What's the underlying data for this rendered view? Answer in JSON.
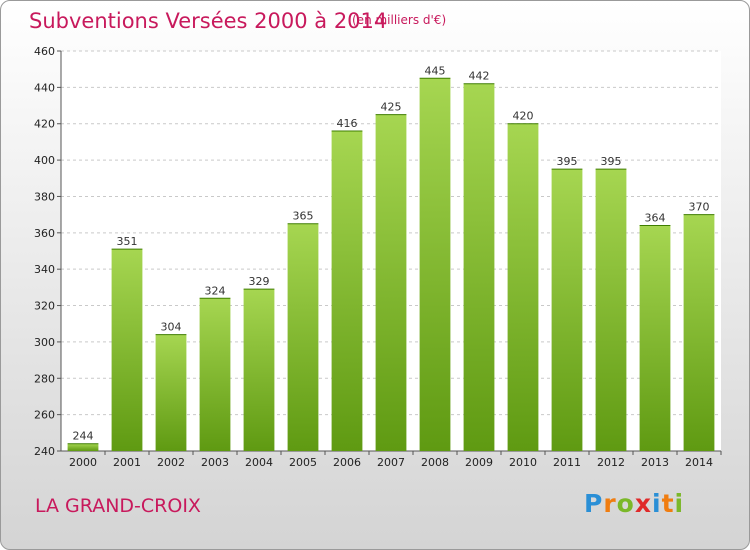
{
  "header": {
    "title": "Subventions Versées 2000 à 2014",
    "subtitle": "(en milliers d'€)"
  },
  "footer": {
    "commune": "LA GRAND-CROIX",
    "logo_letters": [
      "P",
      "r",
      "o",
      "x",
      "i",
      "t",
      "i"
    ]
  },
  "colors": {
    "accent": "#c8195c",
    "bar_light": "#9fd14b",
    "bar_dark": "#5f9a12"
  },
  "chart_data": {
    "type": "bar",
    "categories": [
      "2000",
      "2001",
      "2002",
      "2003",
      "2004",
      "2005",
      "2006",
      "2007",
      "2008",
      "2009",
      "2010",
      "2011",
      "2012",
      "2013",
      "2014"
    ],
    "values": [
      244,
      351,
      304,
      324,
      329,
      365,
      416,
      425,
      445,
      442,
      420,
      395,
      395,
      364,
      370
    ],
    "ylim": [
      240,
      460
    ],
    "yticks": [
      240,
      260,
      280,
      300,
      320,
      340,
      360,
      380,
      400,
      420,
      440,
      460
    ],
    "grid": true,
    "xlabel": "",
    "ylabel": ""
  }
}
